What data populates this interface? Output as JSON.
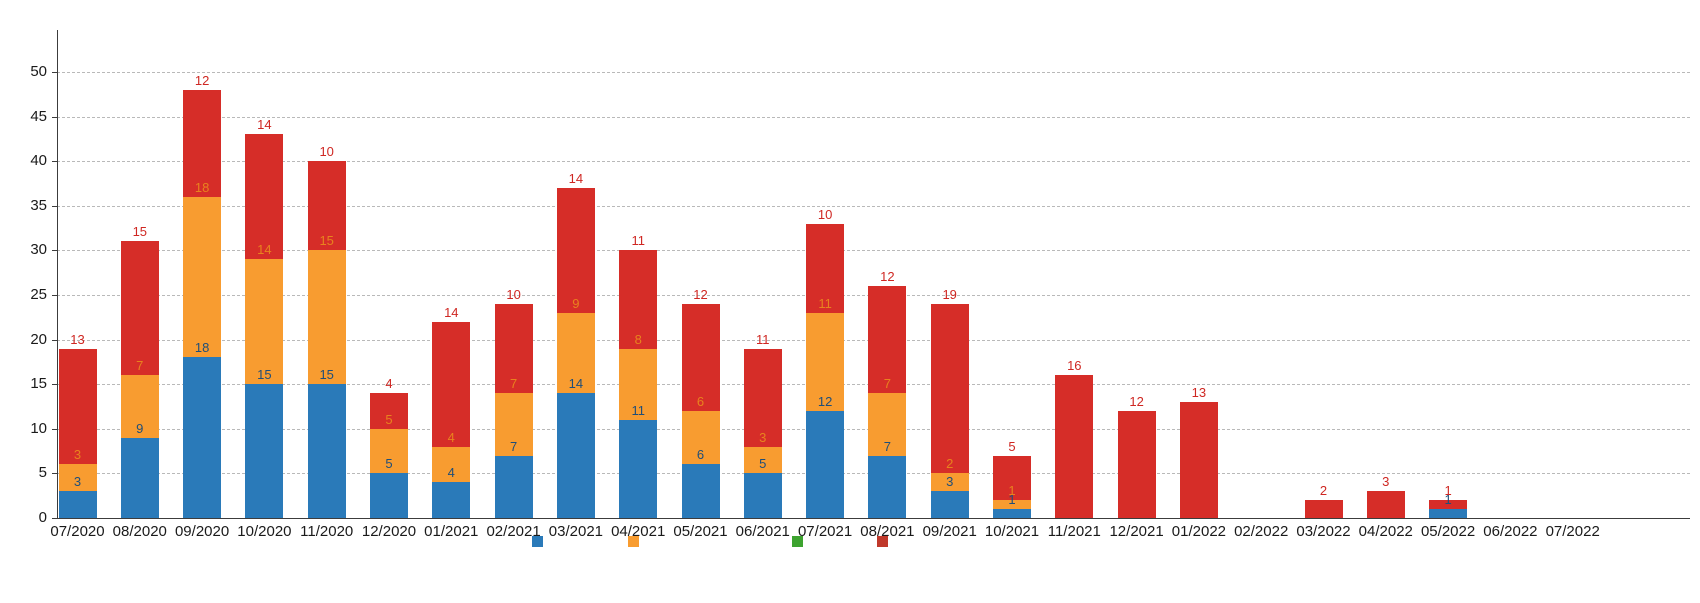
{
  "chart_data": {
    "type": "bar",
    "stacked": true,
    "title": "",
    "xlabel": "",
    "ylabel": "",
    "categories": [
      "07/2020",
      "08/2020",
      "09/2020",
      "10/2020",
      "11/2020",
      "12/2020",
      "01/2021",
      "02/2021",
      "03/2021",
      "04/2021",
      "05/2021",
      "06/2021",
      "07/2021",
      "08/2021",
      "09/2021",
      "10/2021",
      "11/2021",
      "12/2021",
      "01/2022",
      "02/2022",
      "03/2022",
      "04/2022",
      "05/2022",
      "06/2022",
      "07/2022"
    ],
    "series": [
      {
        "name": "series-blue",
        "color": "#2a7ab9",
        "label_color": "#1f4e79",
        "values": [
          3,
          9,
          18,
          15,
          15,
          5,
          4,
          7,
          14,
          11,
          6,
          5,
          12,
          7,
          3,
          1,
          0,
          0,
          0,
          0,
          0,
          0,
          1,
          0,
          0
        ]
      },
      {
        "name": "series-orange",
        "color": "#f89c30",
        "label_color": "#e8821e",
        "values": [
          3,
          7,
          18,
          14,
          15,
          5,
          4,
          7,
          9,
          8,
          6,
          3,
          11,
          7,
          2,
          1,
          0,
          0,
          0,
          0,
          0,
          0,
          0,
          0,
          0
        ]
      },
      {
        "name": "series-red",
        "color": "#d62d28",
        "label_color": "#cf2722",
        "values": [
          13,
          15,
          12,
          14,
          10,
          4,
          14,
          10,
          14,
          11,
          12,
          11,
          10,
          12,
          19,
          5,
          16,
          12,
          13,
          0,
          2,
          3,
          1,
          0,
          0
        ]
      }
    ],
    "totals": [
      19,
      31,
      48,
      43,
      40,
      14,
      22,
      24,
      37,
      30,
      24,
      19,
      33,
      26,
      24,
      7,
      16,
      12,
      13,
      0,
      2,
      3,
      2,
      0,
      0
    ],
    "ylim": [
      0,
      55
    ],
    "yticks": [
      0,
      5,
      10,
      15,
      20,
      25,
      30,
      35,
      40,
      45,
      50
    ],
    "grid": "horizontal-dashed",
    "data_labels": "per-segment, drawn above the top edge of each segment in the segment's color",
    "legend_position": "bottom (labels cut off by image edge)",
    "legend": {
      "items": [
        {
          "name": "series-blue",
          "color": "#2a7ab9",
          "label": ""
        },
        {
          "name": "series-orange",
          "color": "#f89c30",
          "label": ""
        },
        {
          "name": "series-green",
          "color": "#3da32f",
          "label": ""
        },
        {
          "name": "series-red",
          "color": "#c0392b",
          "label": ""
        }
      ]
    }
  }
}
